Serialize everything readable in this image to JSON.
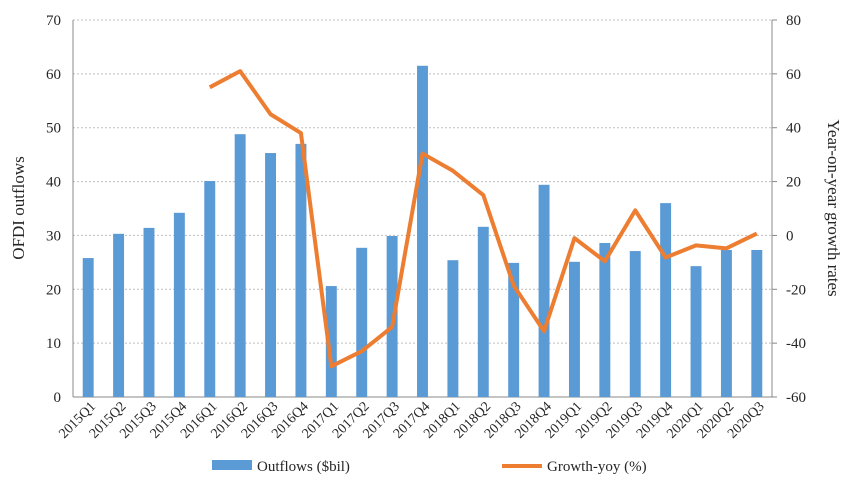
{
  "chart_data": {
    "type": "bar-line",
    "categories": [
      "2015Q1",
      "2015Q2",
      "2015Q3",
      "2015Q4",
      "2016Q1",
      "2016Q2",
      "2016Q3",
      "2016Q4",
      "2017Q1",
      "2017Q2",
      "2017Q3",
      "2017Q4",
      "2018Q1",
      "2018Q2",
      "2018Q3",
      "2018Q4",
      "2019Q1",
      "2019Q2",
      "2019Q3",
      "2019Q4",
      "2020Q1",
      "2020Q2",
      "2020Q3"
    ],
    "series": [
      {
        "name": "Outflows ($bil)",
        "color": "#5b9bd5",
        "type": "bar",
        "values": [
          25.8,
          30.3,
          31.4,
          34.2,
          40.1,
          48.8,
          45.3,
          47.0,
          20.6,
          27.7,
          29.9,
          61.5,
          25.4,
          31.6,
          24.9,
          39.4,
          25.1,
          28.6,
          27.1,
          36.0,
          24.3,
          27.3,
          27.3
        ]
      },
      {
        "name": "Growth-yoy (%)",
        "color": "#ed7d31",
        "type": "line",
        "axis": "y2",
        "values": [
          null,
          null,
          null,
          null,
          55,
          61,
          45,
          38,
          -48.6,
          -43,
          -34,
          30.4,
          24,
          15,
          -18.6,
          -35.6,
          -1,
          -9.6,
          9.3,
          -8.2,
          -3.7,
          -4.8,
          0.7
        ]
      }
    ],
    "ylabel": "OFDI outflows",
    "y2label": "Year-on-year growth rates",
    "ylim": [
      0,
      70
    ],
    "yticks": [
      0,
      10,
      20,
      30,
      40,
      50,
      60,
      70
    ],
    "y2lim": [
      -60,
      80
    ],
    "y2ticks": [
      -60,
      -40,
      -20,
      0,
      20,
      40,
      60,
      80
    ],
    "grid": true,
    "legend": "bottom"
  }
}
